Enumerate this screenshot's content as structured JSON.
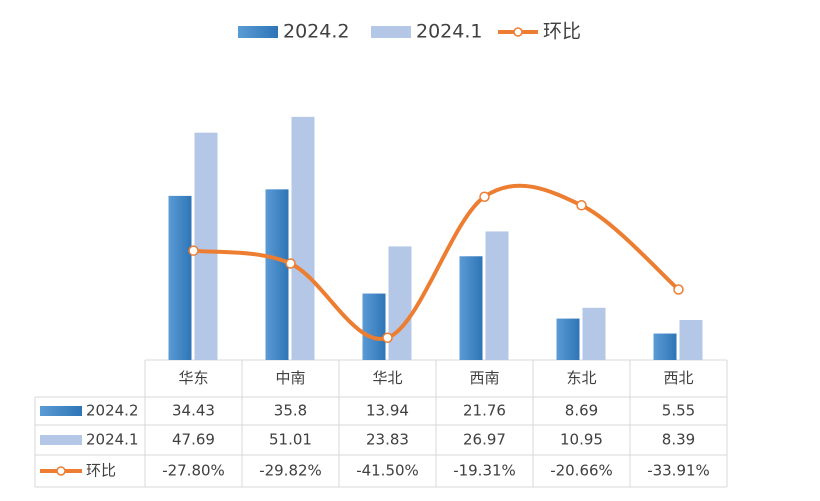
{
  "chart_data": {
    "type": "bar-line-table",
    "categories": [
      "华东",
      "中南",
      "华北",
      "西南",
      "东北",
      "西北"
    ],
    "series": [
      {
        "name": "2024.2",
        "color": "#5b9bd5",
        "values": [
          34.43,
          35.8,
          13.94,
          21.76,
          8.69,
          5.55
        ]
      },
      {
        "name": "2024.1",
        "color": "#b4c7e7",
        "values": [
          47.69,
          51.01,
          23.83,
          26.97,
          10.95,
          8.39
        ]
      },
      {
        "name": "环比",
        "color": "#ed7d31",
        "axis": "y2",
        "values": [
          -27.8,
          -29.82,
          -41.5,
          -19.31,
          -20.66,
          -33.91
        ],
        "value_labels": [
          "-27.80%",
          "-29.82%",
          "-41.50%",
          "-19.31%",
          "-20.66%",
          "-33.91%"
        ]
      }
    ],
    "ylim": [
      0,
      60
    ],
    "y2lim": [
      -45,
      0
    ],
    "legend": "top"
  }
}
